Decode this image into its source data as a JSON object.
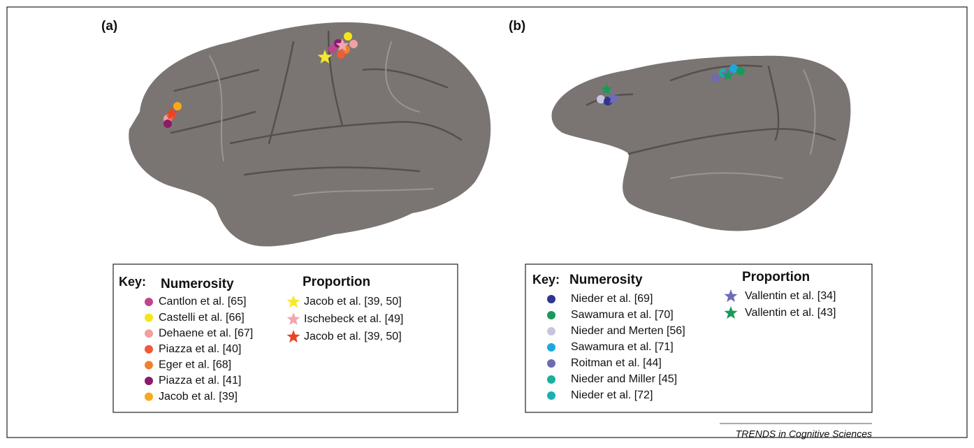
{
  "panels": [
    {
      "label": "(a)",
      "key": {
        "title": "Key:",
        "groups": [
          {
            "title": "Numerosity",
            "marker": "circle",
            "entries": [
              {
                "label": "Cantlon et al. [65]",
                "color": "#c0458f"
              },
              {
                "label": "Castelli et al. [66]",
                "color": "#f5e61b"
              },
              {
                "label": "Dehaene et al. [67]",
                "color": "#f0a0a0"
              },
              {
                "label": "Piazza et al. [40]",
                "color": "#ef5a3a"
              },
              {
                "label": "Eger et al. [68]",
                "color": "#f08030"
              },
              {
                "label": "Piazza et al. [41]",
                "color": "#8b1a6b"
              },
              {
                "label": "Jacob et al. [39]",
                "color": "#f7a81b"
              }
            ]
          },
          {
            "title": "Proportion",
            "marker": "star",
            "entries": [
              {
                "label": "Jacob et al. [39, 50]",
                "color": "#f7e82a"
              },
              {
                "label": "Ischebeck et al. [49]",
                "color": "#f4a6b0"
              },
              {
                "label": "Jacob  et al. [39, 50]",
                "color": "#e8442a"
              }
            ]
          }
        ]
      }
    },
    {
      "label": "(b)",
      "key": {
        "title": "Key:",
        "groups": [
          {
            "title": "Numerosity",
            "marker": "circle",
            "entries": [
              {
                "label": "Nieder et al. [69]",
                "color": "#2e3490"
              },
              {
                "label": "Sawamura et al. [70]",
                "color": "#1a9a5a"
              },
              {
                "label": "Nieder and Merten [56]",
                "color": "#c7c6e0"
              },
              {
                "label": "Sawamura et al. [71]",
                "color": "#1ba8e0"
              },
              {
                "label": "Roitman et al. [44]",
                "color": "#6f6bb0"
              },
              {
                "label": "Nieder and Miller [45]",
                "color": "#1ab0a0"
              },
              {
                "label": "Nieder et al. [72]",
                "color": "#1ab0b0"
              }
            ]
          },
          {
            "title": "Proportion",
            "marker": "star",
            "entries": [
              {
                "label": "Vallentin et al. [34]",
                "color": "#6e6bb8"
              },
              {
                "label": "Vallentin et al. [43]",
                "color": "#1a9a5a"
              }
            ]
          }
        ]
      }
    }
  ],
  "footer": "TRENDS in Cognitive Sciences"
}
